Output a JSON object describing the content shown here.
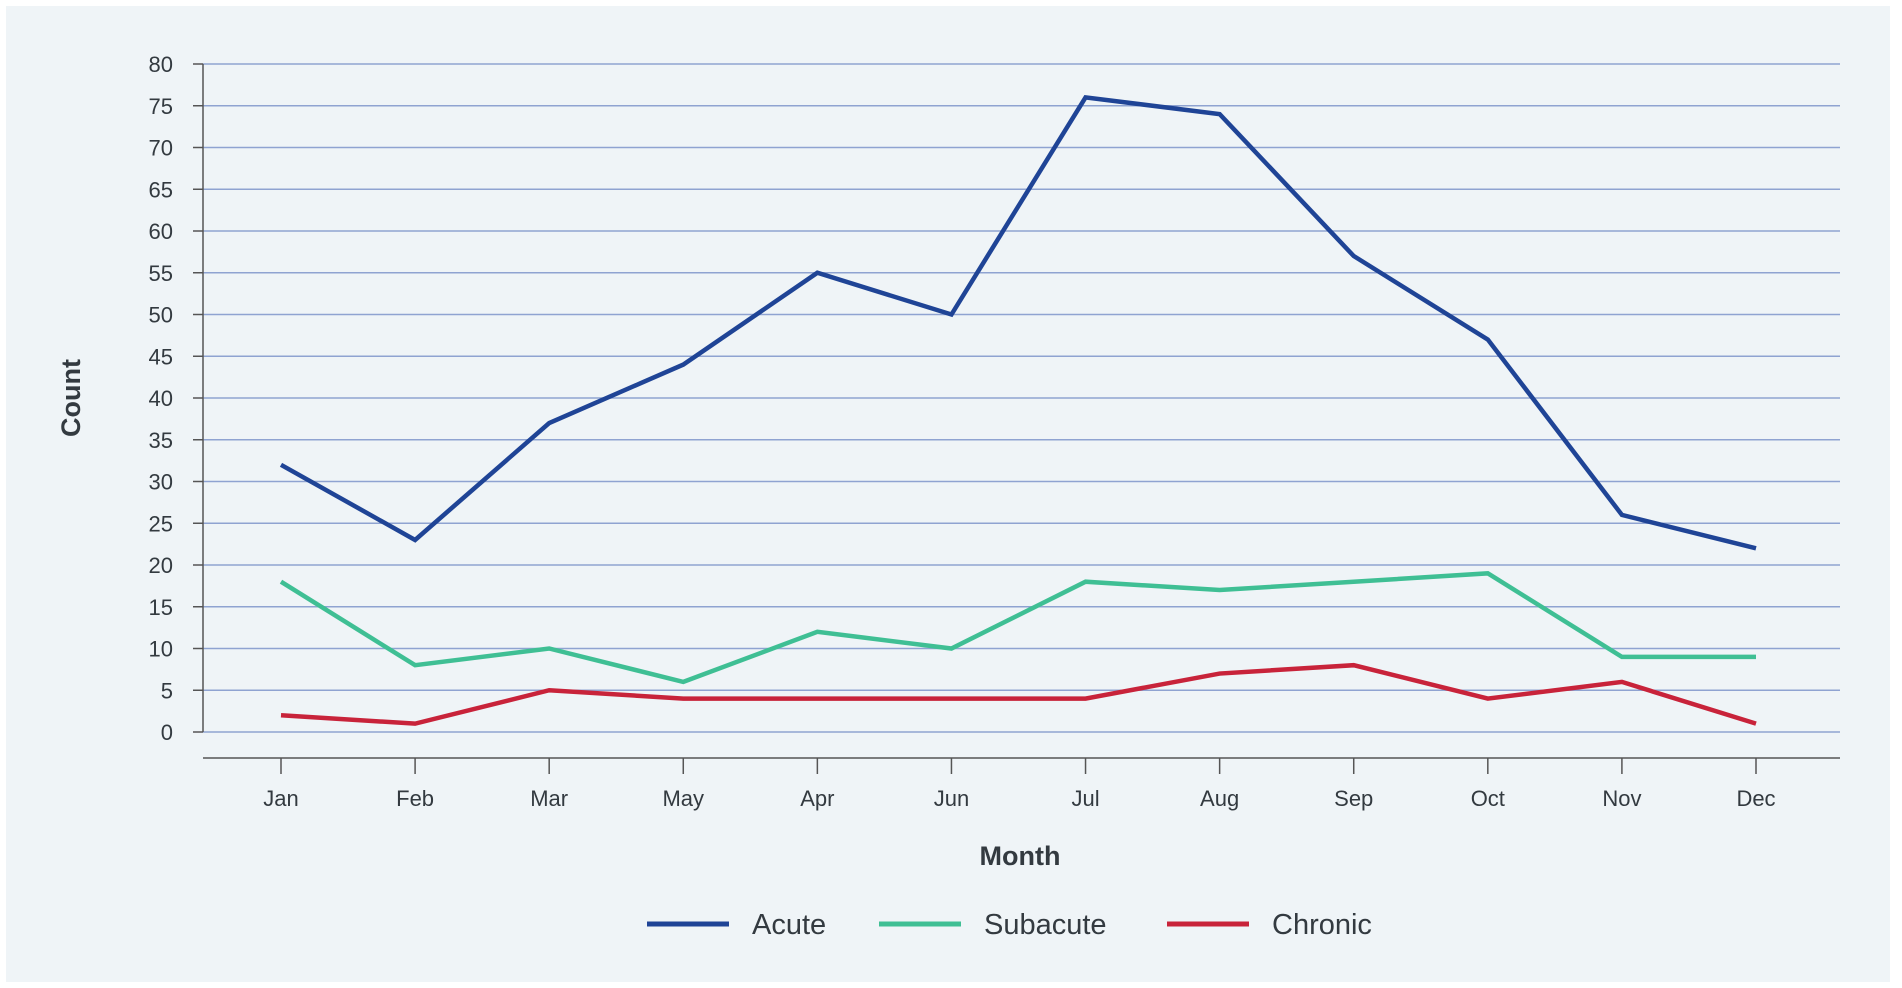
{
  "chart_data": {
    "type": "line",
    "title": "",
    "xlabel": "Month",
    "ylabel": "Count",
    "categories": [
      "Jan",
      "Feb",
      "Mar",
      "May",
      "Apr",
      "Jun",
      "Jul",
      "Aug",
      "Sep",
      "Oct",
      "Nov",
      "Dec"
    ],
    "ylim": [
      0,
      80
    ],
    "yticks": [
      0,
      5,
      10,
      15,
      20,
      25,
      30,
      35,
      40,
      45,
      50,
      55,
      60,
      65,
      70,
      75,
      80
    ],
    "grid": true,
    "legend_position": "bottom-center",
    "series": [
      {
        "name": "Acute",
        "color": "#1f4496",
        "values": [
          32,
          23,
          37,
          44,
          55,
          50,
          76,
          74,
          57,
          47,
          26,
          22
        ]
      },
      {
        "name": "Subacute",
        "color": "#3fbf94",
        "values": [
          18,
          8,
          10,
          6,
          12,
          10,
          18,
          17,
          18,
          19,
          9,
          9
        ]
      },
      {
        "name": "Chronic",
        "color": "#c8233a",
        "values": [
          2,
          1,
          5,
          4,
          4,
          4,
          4,
          7,
          8,
          4,
          6,
          1
        ]
      }
    ],
    "colors": {
      "background": "#eff4f7",
      "grid": "#8fa3d1",
      "axis": "#555555"
    }
  }
}
